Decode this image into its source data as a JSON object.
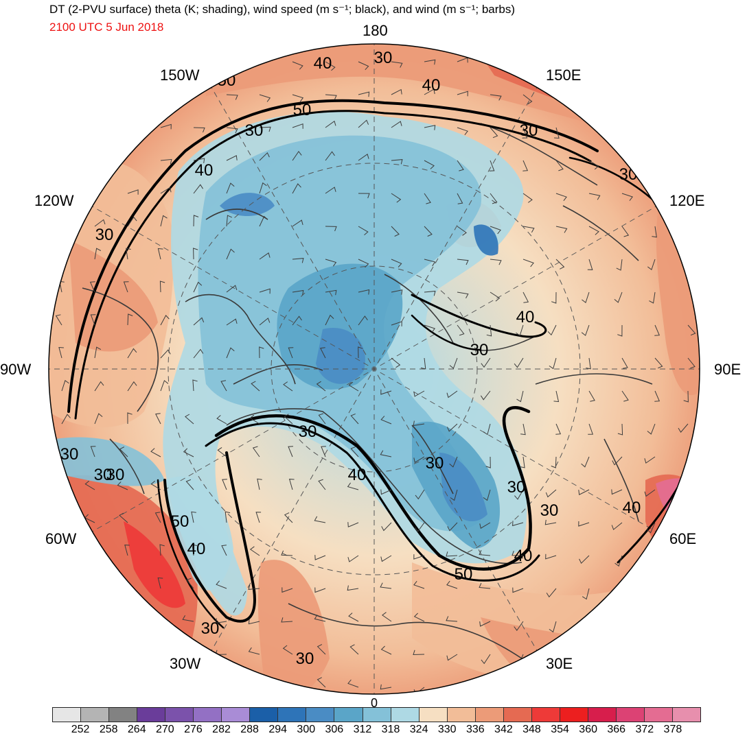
{
  "header": {
    "title": "DT (2-PVU surface) theta (K; shading), wind speed (m s⁻¹; black), and wind (m s⁻¹; barbs)",
    "valid_time": "2100 UTC 5 Jun 2018"
  },
  "longitude_labels": {
    "lon_180": "180",
    "lon_150w": "150W",
    "lon_150e": "150E",
    "lon_120w": "120W",
    "lon_120e": "120E",
    "lon_90w": "90W",
    "lon_90e": "90E",
    "lon_60w": "60W",
    "lon_60e": "60E",
    "lon_30w": "30W",
    "lon_30e": "30E",
    "lon_0": "0"
  },
  "contour_labels": [
    "50",
    "40",
    "30",
    "40",
    "50",
    "30",
    "40",
    "30",
    "30",
    "30",
    "40",
    "30",
    "30",
    "40",
    "30",
    "30",
    "30",
    "40",
    "50",
    "30",
    "40",
    "50",
    "30",
    "30",
    "30",
    "40",
    "30"
  ],
  "colorbar": {
    "units": "K",
    "colors": [
      "#e6e6e6",
      "#b4b4b4",
      "#828282",
      "#6a3d9a",
      "#7b52ab",
      "#9370c4",
      "#a98cd6",
      "#1b5fa8",
      "#2e74b8",
      "#4a8cc4",
      "#5aa5c8",
      "#84c1d8",
      "#aed9e4",
      "#f6dfc2",
      "#f2bd98",
      "#ec9b78",
      "#e56a52",
      "#ee3a38",
      "#ec1f1f",
      "#d71e4c",
      "#dc4274",
      "#e46c92",
      "#e78fad"
    ],
    "ticks": [
      "252",
      "258",
      "264",
      "270",
      "276",
      "282",
      "288",
      "294",
      "300",
      "306",
      "312",
      "318",
      "324",
      "330",
      "336",
      "342",
      "348",
      "354",
      "360",
      "366",
      "372",
      "378"
    ]
  },
  "contour_color": "#000000",
  "barb_color": "#3c3c3c",
  "border_color": "#3a3a3a"
}
